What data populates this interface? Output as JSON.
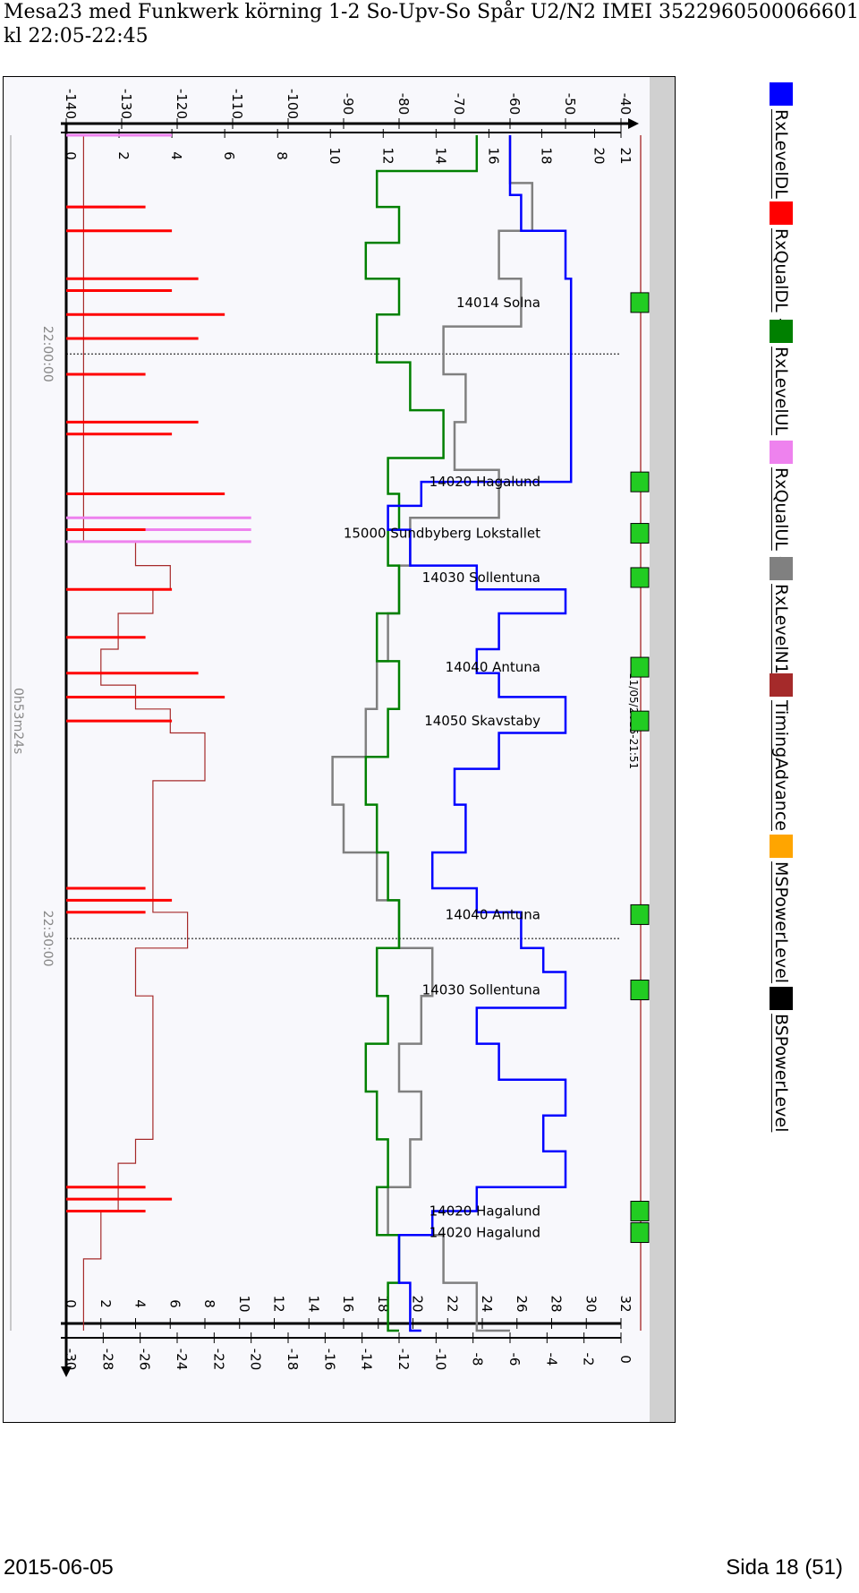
{
  "header": {
    "line1": "Mesa23 med Funkwerk körning 1-2 So-Upv-So Spår U2/N2 IMEI 352296050006660​1",
    "line2": "kl 22:05-22:45"
  },
  "footer": {
    "date": "2015-06-05",
    "page": "Sida 18 (51)"
  },
  "legend": [
    {
      "label": "RxLevelDL",
      "color": "#0000ff"
    },
    {
      "label": "RxQualDL",
      "color": "#ff0000"
    },
    {
      "label": "RxLevelUL",
      "color": "#008000"
    },
    {
      "label": "RxQualUL",
      "color": "#ee82ee"
    },
    {
      "label": "RxLevelN1",
      "color": "#808080"
    },
    {
      "label": "TimingAdvance",
      "color": "#a52a2a"
    },
    {
      "label": "MSPowerLevel",
      "color": "#ffa500"
    },
    {
      "label": "BSPowerLevel",
      "color": "#000000"
    }
  ],
  "legend_separator": "-",
  "chart_data": {
    "type": "line",
    "orientation": "rotated-90",
    "axes": {
      "rxlevel_ticks": [
        "-140",
        "-130",
        "-120",
        "-110",
        "-100",
        "-90",
        "-80",
        "-70",
        "-60",
        "-50",
        "-40"
      ],
      "rxqual_ticks": [
        "0",
        "2",
        "4",
        "6",
        "8",
        "10",
        "12",
        "14",
        "16",
        "18",
        "20",
        "21"
      ],
      "ta_ticks": [
        "0",
        "2",
        "4",
        "6",
        "8",
        "10",
        "12",
        "14",
        "16",
        "18",
        "20",
        "22",
        "24",
        "26",
        "28",
        "30",
        "32"
      ],
      "power_ticks": [
        "-30",
        "-28",
        "-26",
        "-24",
        "-22",
        "-20",
        "-18",
        "-16",
        "-14",
        "-12",
        "-10",
        "-8",
        "-6",
        "-4",
        "-2",
        "0"
      ],
      "time_labels": [
        "22:00:00",
        "22:30:00"
      ],
      "duration_label": "0h53m24s",
      "date_label": "11/05/2015-21:51"
    },
    "events": [
      {
        "label": "14014 Solna",
        "t": 0.14
      },
      {
        "label": "14020 Hagalund",
        "t": 0.29
      },
      {
        "label": "15000 Sundbyberg Lokstallet",
        "t": 0.333
      },
      {
        "label": "14030 Sollentuna",
        "t": 0.37
      },
      {
        "label": "14040 Antuna",
        "t": 0.445
      },
      {
        "label": "14050 Skavstaby",
        "t": 0.49
      },
      {
        "label": "14040 Antuna",
        "t": 0.652
      },
      {
        "label": "14030 Sollentuna",
        "t": 0.715
      },
      {
        "label": "14020 Hagalund",
        "t": 0.9
      },
      {
        "label": "14020 Hagalund",
        "t": 0.918
      }
    ],
    "series": [
      {
        "name": "RxLevelDL",
        "color": "#0000ff",
        "t": [
          0.0,
          0.05,
          0.08,
          0.12,
          0.16,
          0.2,
          0.25,
          0.29,
          0.31,
          0.33,
          0.36,
          0.38,
          0.4,
          0.43,
          0.45,
          0.47,
          0.5,
          0.53,
          0.56,
          0.6,
          0.63,
          0.65,
          0.68,
          0.7,
          0.73,
          0.76,
          0.79,
          0.82,
          0.85,
          0.88,
          0.9,
          0.92,
          0.96,
          1.0
        ],
        "v": [
          -60,
          -58,
          -50,
          -49,
          -49,
          -49,
          -49,
          -76,
          -82,
          -78,
          -66,
          -50,
          -62,
          -66,
          -62,
          -50,
          -62,
          -70,
          -68,
          -74,
          -66,
          -58,
          -54,
          -50,
          -66,
          -62,
          -50,
          -54,
          -50,
          -66,
          -74,
          -80,
          -78,
          -76
        ]
      },
      {
        "name": "RxLevelUL",
        "color": "#008000",
        "t": [
          0.0,
          0.03,
          0.06,
          0.09,
          0.12,
          0.15,
          0.19,
          0.23,
          0.27,
          0.3,
          0.33,
          0.36,
          0.4,
          0.44,
          0.48,
          0.52,
          0.56,
          0.6,
          0.64,
          0.68,
          0.72,
          0.76,
          0.8,
          0.84,
          0.88,
          0.92,
          0.96,
          1.0
        ],
        "v": [
          -66,
          -84,
          -80,
          -86,
          -80,
          -84,
          -78,
          -72,
          -82,
          -80,
          -82,
          -80,
          -84,
          -80,
          -82,
          -86,
          -84,
          -82,
          -80,
          -84,
          -82,
          -86,
          -84,
          -82,
          -84,
          -80,
          -82,
          -80
        ]
      },
      {
        "name": "RxLevelN1",
        "color": "#808080",
        "t": [
          0.0,
          0.04,
          0.08,
          0.12,
          0.16,
          0.2,
          0.24,
          0.28,
          0.32,
          0.36,
          0.4,
          0.44,
          0.48,
          0.52,
          0.56,
          0.6,
          0.64,
          0.68,
          0.72,
          0.76,
          0.8,
          0.84,
          0.88,
          0.92,
          0.96,
          1.0
        ],
        "v": [
          -60,
          -56,
          -62,
          -58,
          -72,
          -68,
          -70,
          -62,
          -78,
          -80,
          -82,
          -84,
          -86,
          -92,
          -90,
          -84,
          -80,
          -74,
          -76,
          -80,
          -76,
          -78,
          -82,
          -72,
          -66,
          -60
        ]
      },
      {
        "name": "RxQualDL",
        "color": "#ff0000",
        "t": [
          0.06,
          0.08,
          0.12,
          0.13,
          0.15,
          0.17,
          0.2,
          0.24,
          0.25,
          0.3,
          0.33,
          0.38,
          0.42,
          0.45,
          0.47,
          0.49,
          0.63,
          0.64,
          0.65,
          0.88,
          0.89,
          0.9
        ],
        "v": [
          3,
          4,
          5,
          4,
          6,
          5,
          3,
          5,
          4,
          6,
          3,
          4,
          3,
          5,
          6,
          4,
          3,
          4,
          3,
          3,
          4,
          3
        ]
      },
      {
        "name": "RxQualUL",
        "color": "#ee82ee",
        "t": [
          0.0,
          0.06,
          0.32,
          0.33,
          0.34,
          0.9
        ],
        "v": [
          4,
          2,
          7,
          7,
          7,
          2
        ]
      },
      {
        "name": "TimingAdvance",
        "color": "#a52a2a",
        "t": [
          0.0,
          0.1,
          0.2,
          0.3,
          0.34,
          0.36,
          0.38,
          0.4,
          0.43,
          0.46,
          0.48,
          0.5,
          0.54,
          0.58,
          0.62,
          0.65,
          0.68,
          0.72,
          0.76,
          0.8,
          0.84,
          0.86,
          0.88,
          0.9,
          0.94,
          1.0
        ],
        "v": [
          1,
          1,
          1,
          1,
          4,
          6,
          5,
          3,
          2,
          4,
          6,
          8,
          5,
          5,
          5,
          7,
          4,
          5,
          5,
          5,
          4,
          3,
          3,
          2,
          1,
          1
        ]
      }
    ]
  }
}
